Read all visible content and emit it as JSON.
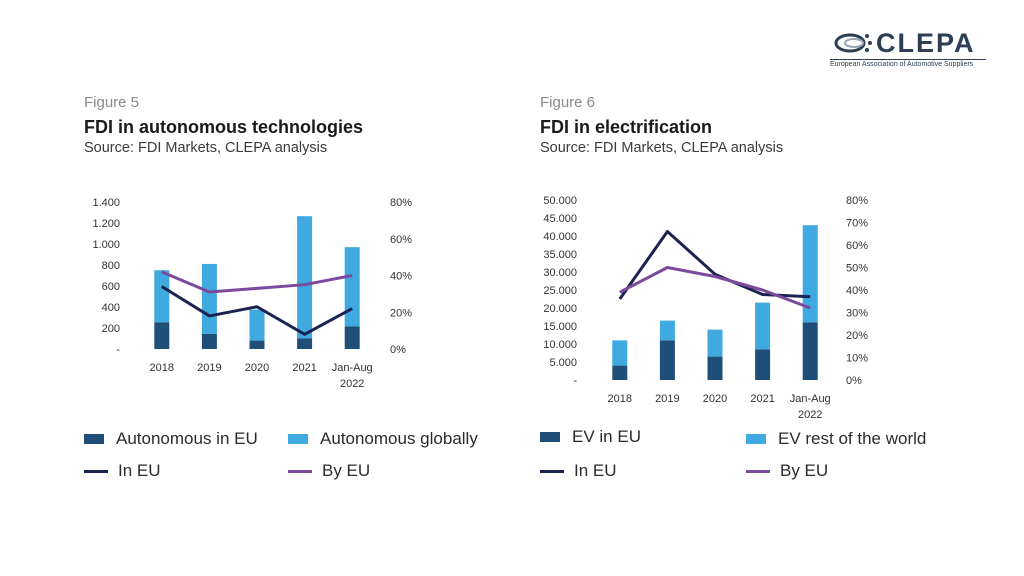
{
  "logo": {
    "name": "CLEPA",
    "subtitle": "European Association of Automotive Suppliers",
    "colors": {
      "primary": "#2d3e55"
    }
  },
  "figures": [
    {
      "label": "Figure 5",
      "title": "FDI in autonomous technologies",
      "source": "Source: FDI Markets, CLEPA analysis"
    },
    {
      "label": "Figure 6",
      "title": "FDI in electrification",
      "source": "Source: FDI Markets, CLEPA analysis"
    }
  ],
  "legends": [
    [
      {
        "label": "Autonomous in EU",
        "kind": "box",
        "color": "#1f4e79"
      },
      {
        "label": "Autonomous globally",
        "kind": "box",
        "color": "#3fa9e0"
      },
      {
        "label": "In EU",
        "kind": "line",
        "color": "#1b2451"
      },
      {
        "label": "By EU",
        "kind": "line",
        "color": "#7b4a9c"
      }
    ],
    [
      {
        "label": "EV in EU",
        "kind": "box",
        "color": "#1f4e79"
      },
      {
        "label": "EV rest of the world",
        "kind": "box",
        "color": "#3fa9e0"
      },
      {
        "label": "In EU",
        "kind": "line",
        "color": "#1b2451"
      },
      {
        "label": "By EU",
        "kind": "line",
        "color": "#7b4a9c"
      }
    ]
  ],
  "chart_data": [
    {
      "type": "bar",
      "title": "FDI in autonomous technologies",
      "categories": [
        "2018",
        "2019",
        "2020",
        "2021",
        "Jan-Aug 2022"
      ],
      "stacked": true,
      "series": [
        {
          "name": "Autonomous in EU",
          "type": "bar",
          "axis": "left",
          "color": "#1f4e79",
          "values": [
            255,
            145,
            80,
            100,
            215
          ]
        },
        {
          "name": "Autonomous globally",
          "type": "bar",
          "axis": "left",
          "color": "#3fa9e0",
          "values": [
            495,
            665,
            295,
            1165,
            755
          ]
        },
        {
          "name": "In EU",
          "type": "line",
          "axis": "right",
          "color": "#1b2451",
          "values": [
            34,
            18,
            23,
            8,
            22
          ]
        },
        {
          "name": "By EU",
          "type": "line",
          "axis": "right",
          "color": "#7b4a9c",
          "values": [
            42,
            31,
            33,
            35,
            40
          ]
        }
      ],
      "ylim": [
        0,
        1400
      ],
      "yticks": [
        "-",
        "200",
        "400",
        "600",
        "800",
        "1.000",
        "1.200",
        "1.400"
      ],
      "y2lim": [
        0,
        80
      ],
      "y2ticks": [
        "0%",
        "20%",
        "40%",
        "60%",
        "80%"
      ],
      "grid": false,
      "legend_position": "bottom"
    },
    {
      "type": "bar",
      "title": "FDI in electrification",
      "categories": [
        "2018",
        "2019",
        "2020",
        "2021",
        "Jan-Aug 2022"
      ],
      "stacked": true,
      "series": [
        {
          "name": "EV in EU",
          "type": "bar",
          "axis": "left",
          "color": "#1f4e79",
          "values": [
            4000,
            11000,
            6500,
            8500,
            16000
          ]
        },
        {
          "name": "EV rest of the world",
          "type": "bar",
          "axis": "left",
          "color": "#3fa9e0",
          "values": [
            7000,
            5500,
            7500,
            13000,
            27000
          ]
        },
        {
          "name": "In EU",
          "type": "line",
          "axis": "right",
          "color": "#1b2451",
          "values": [
            36,
            66,
            47,
            38,
            37
          ]
        },
        {
          "name": "By EU",
          "type": "line",
          "axis": "right",
          "color": "#7b4a9c",
          "values": [
            39,
            50,
            46,
            40,
            32
          ]
        }
      ],
      "ylim": [
        0,
        50000
      ],
      "yticks": [
        "-",
        "5.000",
        "10.000",
        "15.000",
        "20.000",
        "25.000",
        "30.000",
        "35.000",
        "40.000",
        "45.000",
        "50.000"
      ],
      "y2lim": [
        0,
        80
      ],
      "y2ticks": [
        "0%",
        "10%",
        "20%",
        "30%",
        "40%",
        "50%",
        "60%",
        "70%",
        "80%"
      ],
      "grid": false,
      "legend_position": "bottom"
    }
  ]
}
